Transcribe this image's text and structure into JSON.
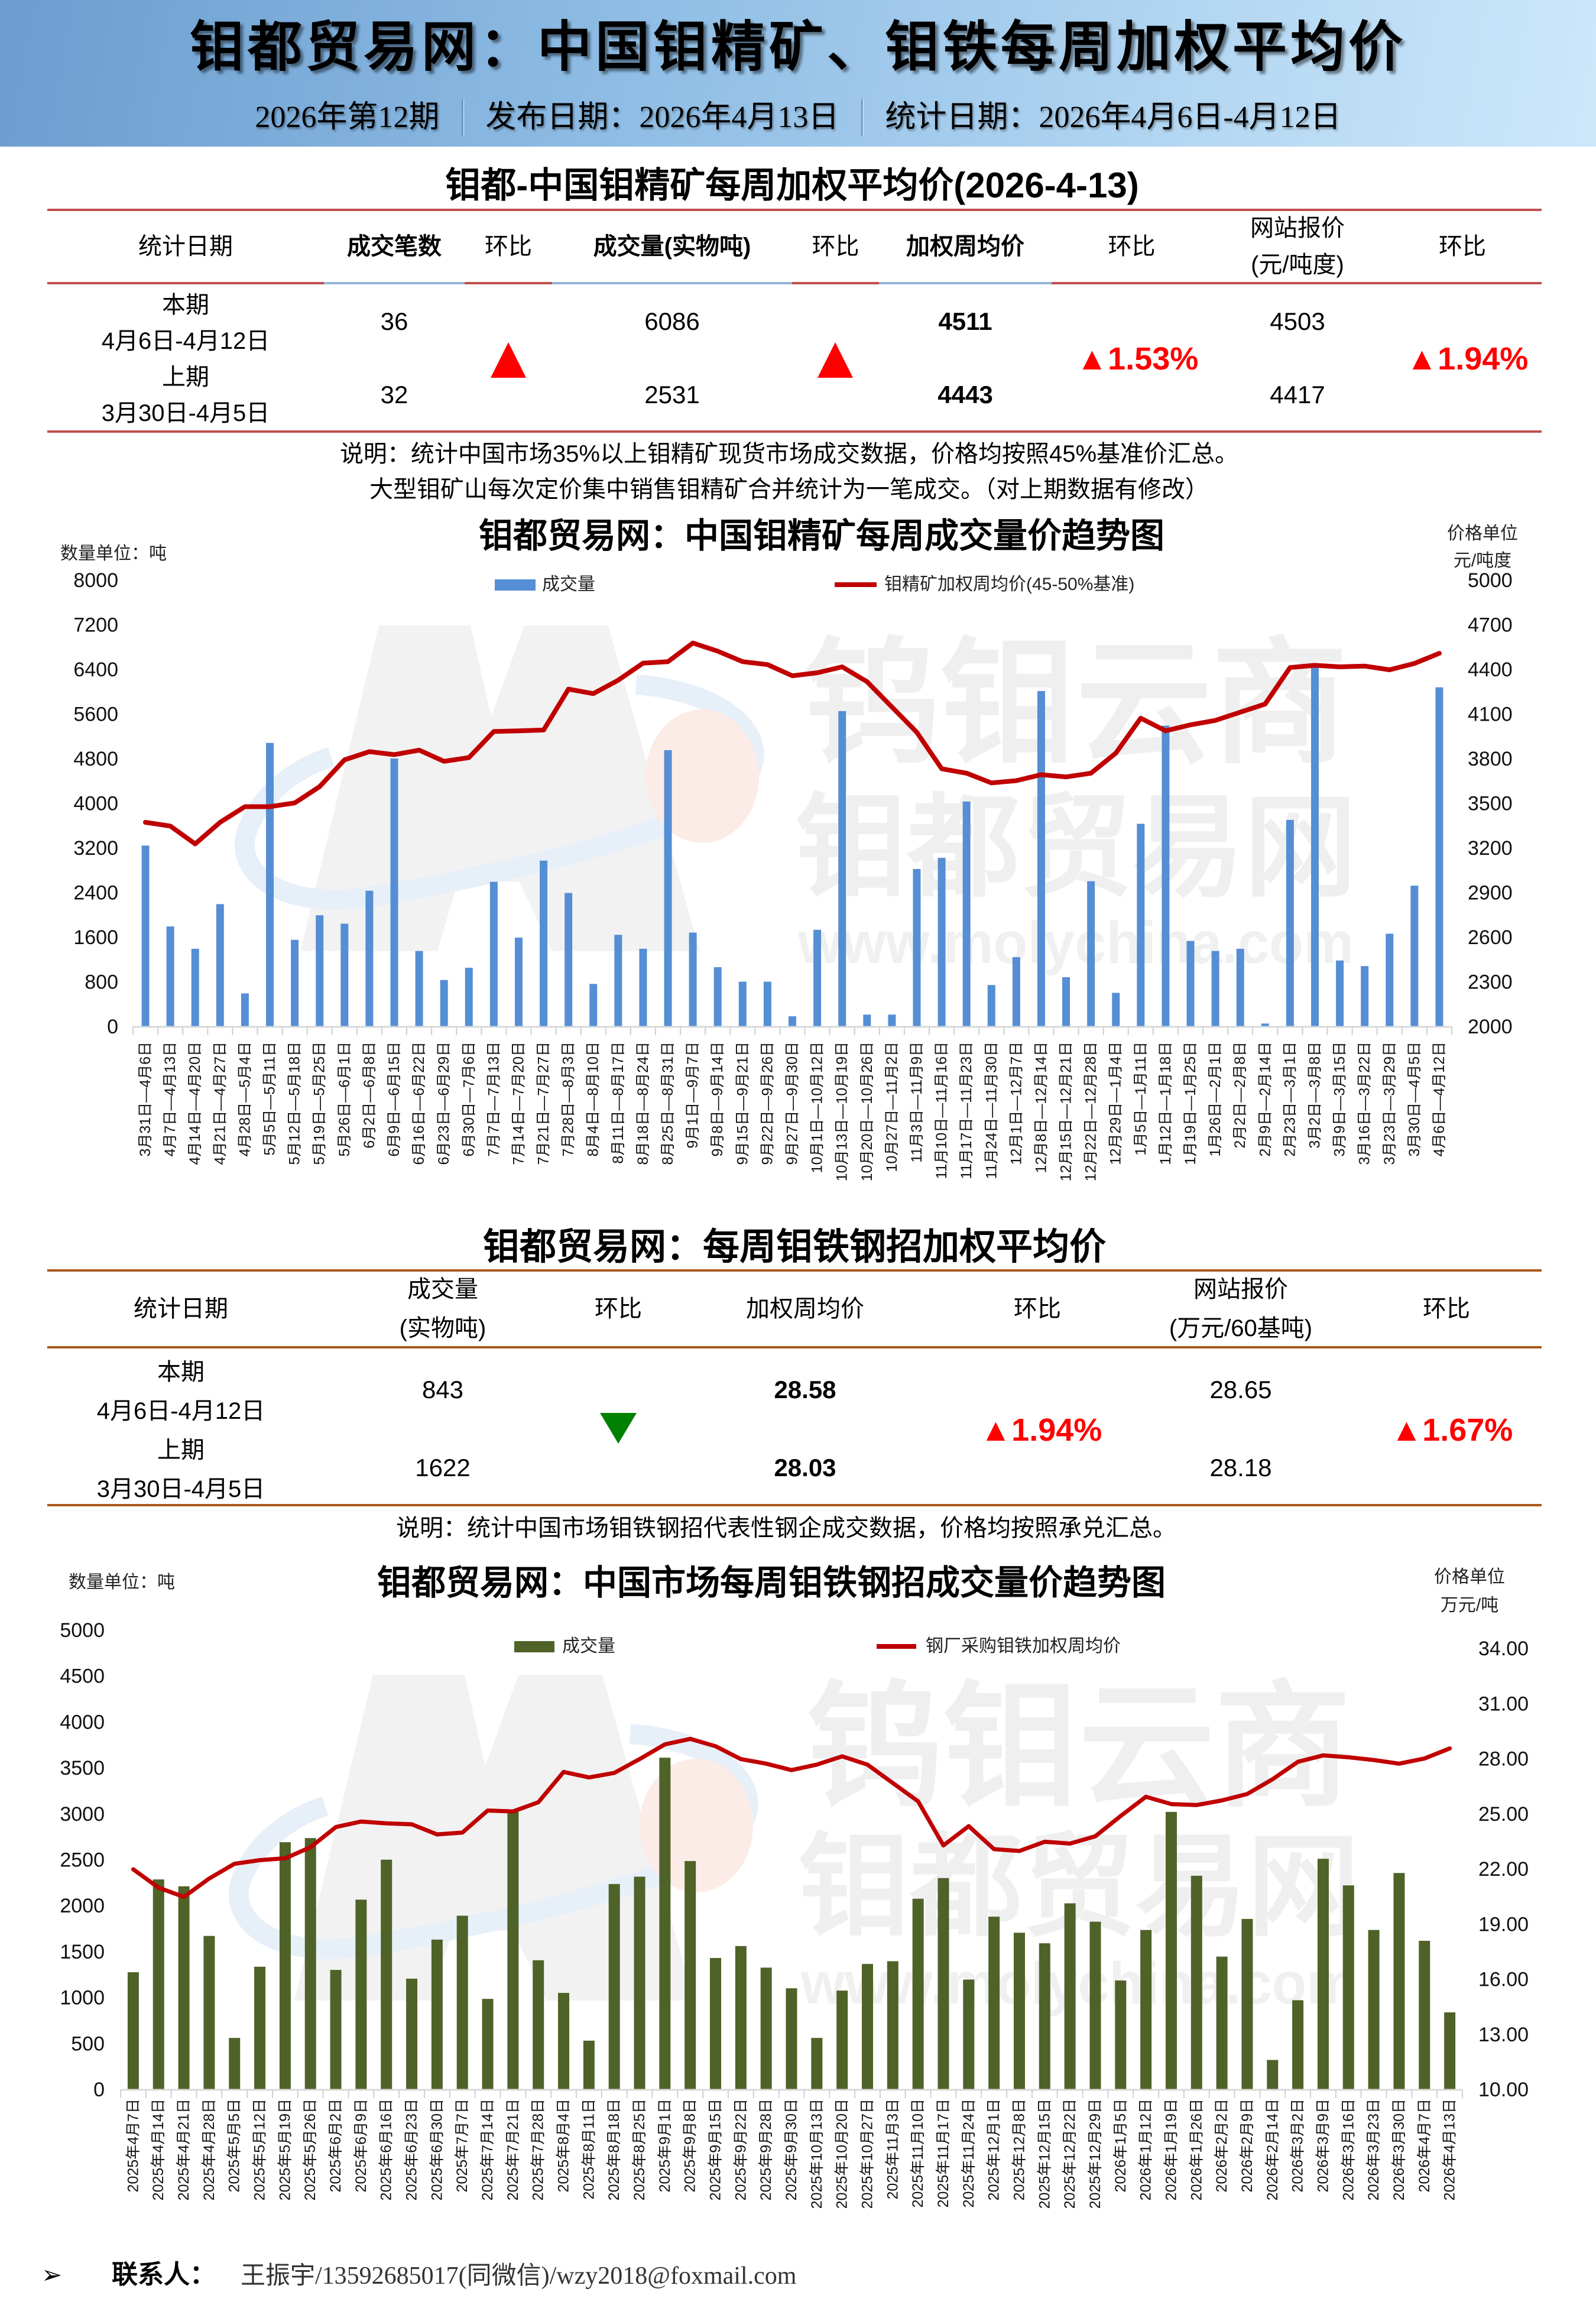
{
  "header": {
    "title": "钼都贸易网：中国钼精矿、钼铁每周加权平均价",
    "issue": "2026年第12期",
    "publish_date": "发布日期：2026年4月13日",
    "stat_period": "统计日期：2026年4月6日-4月12日"
  },
  "table1": {
    "title": "钼都-中国钼精矿每周加权平均价(2026-4-13)",
    "headers": {
      "date": "统计日期",
      "deals": "成交笔数",
      "deals_chg": "环比",
      "volume": "成交量(实物吨)",
      "volume_chg": "环比",
      "avg_price": "加权周均价",
      "avg_price_chg": "环比",
      "site_price_l1": "网站报价",
      "site_price_l2": "(元/吨度)",
      "site_price_chg": "环比"
    },
    "current": {
      "label": "本期",
      "dates": "4月6日-4月12日",
      "deals": "36",
      "volume": "6086",
      "avg_price": "4511",
      "site_price": "4503"
    },
    "previous": {
      "label": "上期",
      "dates": "3月30日-4月5日",
      "deals": "32",
      "volume": "2531",
      "avg_price": "4443",
      "site_price": "4417"
    },
    "changes": {
      "deals_dir": "up",
      "volume_dir": "up",
      "avg_price": "▲1.53%",
      "site_price": "▲1.94%"
    },
    "notes": [
      "说明：统计中国市场35%以上钼精矿现货市场成交数据，价格均按照45%基准价汇总。",
      "大型钼矿山每次定价集中销售钼精矿合并统计为一笔成交。（对上期数据有修改）"
    ]
  },
  "chart1": {
    "left_unit": "数量单位：吨",
    "right_unit_l1": "价格单位",
    "right_unit_l2": "元/吨度"
  },
  "table2": {
    "title": "钼都贸易网：每周钼铁钢招加权平均价",
    "headers": {
      "date": "统计日期",
      "volume_l1": "成交量",
      "volume_l2": "(实物吨)",
      "volume_chg": "环比",
      "avg_price": "加权周均价",
      "avg_price_chg": "环比",
      "site_price_l1": "网站报价",
      "site_price_l2": "(万元/60基吨)",
      "site_price_chg": "环比"
    },
    "current": {
      "label": "本期",
      "dates": "4月6日-4月12日",
      "volume": "843",
      "avg_price": "28.58",
      "site_price": "28.65"
    },
    "previous": {
      "label": "上期",
      "dates": "3月30日-4月5日",
      "volume": "1622",
      "avg_price": "28.03",
      "site_price": "28.18"
    },
    "changes": {
      "volume_dir": "down",
      "avg_price": "▲1.94%",
      "site_price": "▲1.67%"
    },
    "note": "说明：统计中国市场钼铁钢招代表性钢企成交数据，价格均按照承兑汇总。"
  },
  "chart2": {
    "left_unit": "数量单位：吨",
    "right_unit_l1": "价格单位",
    "right_unit_l2": "万元/吨"
  },
  "watermark": {
    "brand_line1": "钨钼云商",
    "brand_line2": "钼都贸易网",
    "url": "www.molychina.com"
  },
  "footer": {
    "bullet": "➢",
    "label": "联系人：",
    "contact": "王振宇/13592685017(同微信)/wzy2018@foxmail.com"
  },
  "colors": {
    "header_gradient_left": "#6c9dcf",
    "header_gradient_right": "#cde7fa",
    "table1_rule": "#c0504d",
    "table1_rule_accent": "#95b3d7",
    "table2_rule": "#a85a1e",
    "up": "#ff0000",
    "down": "#008000",
    "chart1_bar": "#558ed5",
    "chart2_bar": "#4f6228",
    "price_line": "#c00000"
  },
  "chart_data": [
    {
      "type": "bar",
      "combo": "bar+line",
      "title": "钼都贸易网：中国钼精矿每周成交量价趋势图",
      "xlabel": "",
      "ylabel": "数量单位：吨",
      "y2label": "价格单位 元/吨度",
      "ylim": [
        0,
        8000
      ],
      "yticks": [
        "0",
        "800",
        "1600",
        "2400",
        "3200",
        "4000",
        "4800",
        "5600",
        "6400",
        "7200",
        "8000"
      ],
      "y2lim": [
        2000,
        5000
      ],
      "y2ticks": [
        "2000",
        "2300",
        "2600",
        "2900",
        "3200",
        "3500",
        "3800",
        "4100",
        "4400",
        "4700",
        "5000"
      ],
      "grid": false,
      "legend_position": "top",
      "categories": [
        "3月31日—4月6日",
        "4月7日—4月13日",
        "4月14日—4月20日",
        "4月21日—4月27日",
        "4月28日—5月4日",
        "5月5日—5月11日",
        "5月12日—5月18日",
        "5月19日—5月25日",
        "5月26日—6月1日",
        "6月2日—6月8日",
        "6月9日—6月15日",
        "6月16日—6月22日",
        "6月23日—6月29日",
        "6月30日—7月6日",
        "7月7日—7月13日",
        "7月14日—7月20日",
        "7月21日—7月27日",
        "7月28日—8月3日",
        "8月4日—8月10日",
        "8月11日—8月17日",
        "8月18日—8月24日",
        "8月25日—8月31日",
        "9月1日—9月7日",
        "9月8日—9月14日",
        "9月15日—9月21日",
        "9月22日—9月26日",
        "9月27日—9月30日",
        "10月1日—10月12日",
        "10月13日—10月19日",
        "10月20日—10月26日",
        "10月27日—11月2日",
        "11月3日—11月9日",
        "11月10日—11月16日",
        "11月17日—11月23日",
        "11月24日—11月30日",
        "12月1日—12月7日",
        "12月8日—12月14日",
        "12月15日—12月21日",
        "12月22日—12月28日",
        "12月29日—1月4日",
        "1月5日—1月11日",
        "1月12日—1月18日",
        "1月19日—1月25日",
        "1月26日—2月1日",
        "2月2日—2月8日",
        "2月9日—2月14日",
        "2月23日—3月1日",
        "3月2日—3月8日",
        "3月9日—3月15日",
        "3月16日—3月22日",
        "3月23日—3月29日",
        "3月30日—4月5日",
        "4月6日—4月12日"
      ],
      "series": [
        {
          "name": "成交量",
          "type": "bar",
          "axis": "left",
          "color": "#558ed5",
          "values": [
            3250,
            1800,
            1400,
            2200,
            600,
            5090,
            1560,
            2000,
            1850,
            2440,
            4810,
            1360,
            840,
            1060,
            2600,
            1600,
            2980,
            2400,
            770,
            1650,
            1400,
            4960,
            1690,
            1070,
            810,
            810,
            190,
            1740,
            5660,
            220,
            220,
            2830,
            3030,
            4040,
            750,
            1250,
            6020,
            890,
            2610,
            610,
            3640,
            5400,
            1540,
            1360,
            1400,
            60,
            3710,
            6450,
            1190,
            1090,
            1670,
            2531,
            6086
          ]
        },
        {
          "name": "钼精矿加权周均价(45-50%基准)",
          "type": "line",
          "axis": "right",
          "color": "#c00000",
          "values": [
            3375,
            3350,
            3230,
            3375,
            3480,
            3480,
            3505,
            3615,
            3795,
            3850,
            3830,
            3860,
            3785,
            3810,
            3985,
            3990,
            3995,
            4270,
            4240,
            4330,
            4445,
            4455,
            4580,
            4525,
            4455,
            4435,
            4360,
            4380,
            4420,
            4320,
            4150,
            3980,
            3735,
            3705,
            3640,
            3655,
            3695,
            3680,
            3705,
            3840,
            4075,
            3990,
            4030,
            4060,
            4115,
            4170,
            4415,
            4430,
            4420,
            4425,
            4400,
            4443,
            4511
          ]
        }
      ]
    },
    {
      "type": "bar",
      "combo": "bar+line",
      "title": "钼都贸易网：中国市场每周钼铁钢招成交量价趋势图",
      "xlabel": "",
      "ylabel": "数量单位：吨",
      "y2label": "价格单位 万元/吨",
      "ylim": [
        0,
        5000
      ],
      "yticks": [
        "0",
        "500",
        "1000",
        "1500",
        "2000",
        "2500",
        "3000",
        "3500",
        "4000",
        "4500",
        "5000"
      ],
      "y2lim": [
        10,
        35
      ],
      "y2ticks": [
        "10.00",
        "13.00",
        "16.00",
        "19.00",
        "22.00",
        "25.00",
        "28.00",
        "31.00",
        "34.00"
      ],
      "grid": false,
      "legend_position": "top",
      "categories": [
        "2025年4月7日",
        "2025年4月14日",
        "2025年4月21日",
        "2025年4月28日",
        "2025年5月5日",
        "2025年5月12日",
        "2025年5月19日",
        "2025年5月26日",
        "2025年6月2日",
        "2025年6月9日",
        "2025年6月16日",
        "2025年6月23日",
        "2025年6月30日",
        "2025年7月7日",
        "2025年7月14日",
        "2025年7月21日",
        "2025年7月28日",
        "2025年8月4日",
        "2025年8月11日",
        "2025年8月18日",
        "2025年8月25日",
        "2025年9月1日",
        "2025年9月8日",
        "2025年9月15日",
        "2025年9月22日",
        "2025年9月28日",
        "2025年9月30日",
        "2025年10月13日",
        "2025年10月20日",
        "2025年10月27日",
        "2025年11月3日",
        "2025年11月10日",
        "2025年11月17日",
        "2025年11月24日",
        "2025年12月1日",
        "2025年12月8日",
        "2025年12月15日",
        "2025年12月22日",
        "2025年12月29日",
        "2026年1月5日",
        "2026年1月12日",
        "2026年1月19日",
        "2026年1月26日",
        "2026年2月2日",
        "2026年2月9日",
        "2026年2月14日",
        "2026年3月2日",
        "2026年3月9日",
        "2026年3月16日",
        "2026年3月23日",
        "2026年3月30日",
        "2026年4月7日",
        "2026年4月13日"
      ],
      "series": [
        {
          "name": "成交量",
          "type": "bar",
          "axis": "left",
          "color": "#4f6228",
          "values": [
            1280,
            2290,
            2215,
            1675,
            565,
            1340,
            2695,
            2740,
            1305,
            2070,
            2505,
            1210,
            1635,
            1895,
            990,
            3025,
            1410,
            1055,
            535,
            2240,
            2320,
            3615,
            2490,
            1435,
            1565,
            1330,
            1105,
            565,
            1080,
            1370,
            1400,
            2080,
            2305,
            1200,
            1885,
            1710,
            1595,
            2030,
            1830,
            1190,
            1740,
            3025,
            2330,
            1450,
            1860,
            325,
            975,
            2515,
            2225,
            1740,
            2360,
            1622,
            843
          ]
        },
        {
          "name": "钢厂采购钼铁加权周均价",
          "type": "line",
          "axis": "right",
          "color": "#c00000",
          "values": [
            22.0,
            21.0,
            20.5,
            21.5,
            22.3,
            22.5,
            22.6,
            23.2,
            24.3,
            24.6,
            24.5,
            24.45,
            23.9,
            24.0,
            25.2,
            25.15,
            25.65,
            27.3,
            27.0,
            27.25,
            28.0,
            28.8,
            29.1,
            28.7,
            28.0,
            27.75,
            27.4,
            27.7,
            28.15,
            27.7,
            26.7,
            25.7,
            23.3,
            24.35,
            23.1,
            23.0,
            23.5,
            23.4,
            23.8,
            24.9,
            25.95,
            25.55,
            25.5,
            25.75,
            26.1,
            26.9,
            27.85,
            28.2,
            28.1,
            27.95,
            27.75,
            28.03,
            28.58
          ]
        }
      ]
    }
  ]
}
